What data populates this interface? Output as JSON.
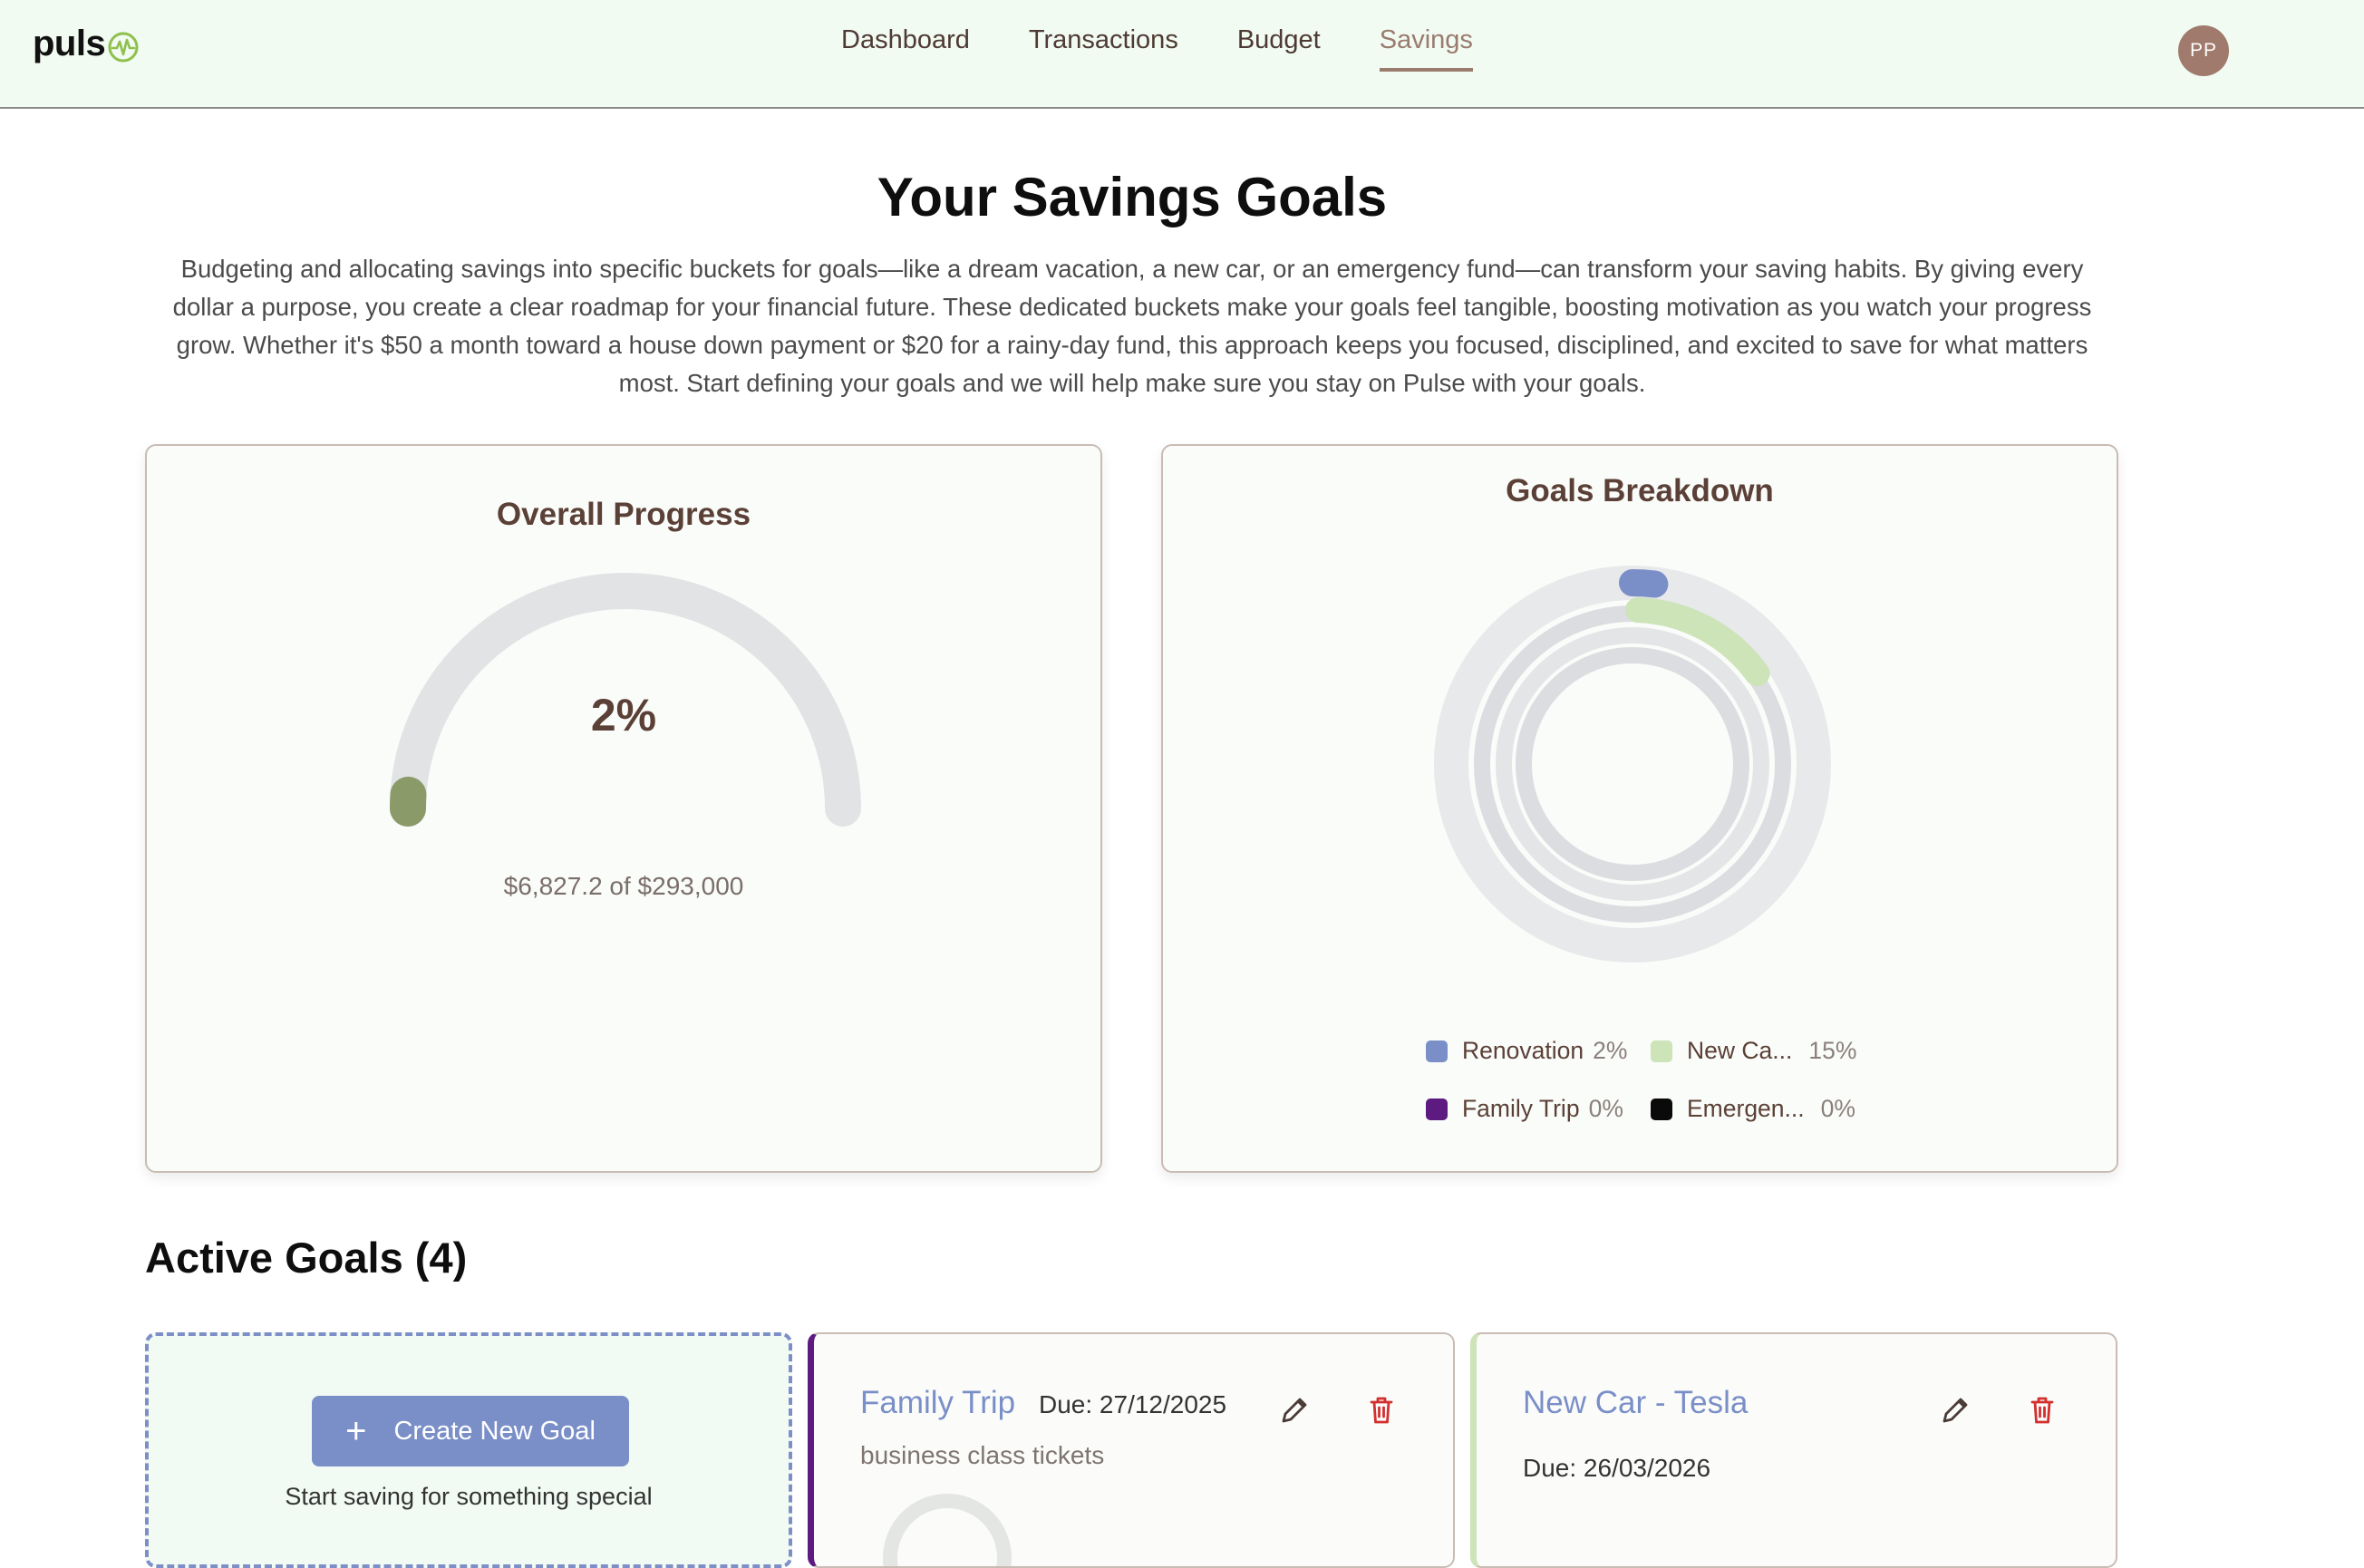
{
  "brand": {
    "name": "puls",
    "icon": "pulse-wave-icon"
  },
  "nav": {
    "items": [
      {
        "label": "Dashboard",
        "active": false
      },
      {
        "label": "Transactions",
        "active": false
      },
      {
        "label": "Budget",
        "active": false
      },
      {
        "label": "Savings",
        "active": true
      }
    ],
    "avatar_initials": "PP"
  },
  "header": {
    "title": "Your Savings Goals",
    "description": "Budgeting and allocating savings into specific buckets for goals—like a dream vacation, a new car, or an emergency fund—can transform your saving habits. By giving every dollar a purpose, you create a clear roadmap for your financial future. These dedicated buckets make your goals feel tangible, boosting motivation as you watch your progress grow. Whether it's $50 a month toward a house down payment or $20 for a rainy-day fund, this approach keeps you focused, disciplined, and excited to save for what matters most. Start defining your goals and we will help make sure you stay on Pulse with your goals."
  },
  "overall": {
    "title": "Overall Progress",
    "percent_label": "2%",
    "progress": 0.02,
    "amount_label": "$6,827.2 of $293,000",
    "color": "#8a9a68"
  },
  "breakdown": {
    "title": "Goals Breakdown",
    "legend": [
      {
        "label": "Renovation",
        "pct_label": "2%",
        "color": "#7a8fc8"
      },
      {
        "label": "New Ca...",
        "pct_label": "15%",
        "color": "#cde3b8"
      },
      {
        "label": "Family Trip",
        "pct_label": "0%",
        "color": "#5d1a80"
      },
      {
        "label": "Emergen...",
        "pct_label": "0%",
        "color": "#0a0a0a"
      }
    ]
  },
  "active_goals": {
    "title": "Active Goals (4)",
    "create_label": "Create New Goal",
    "create_subtext": "Start saving for something special",
    "goals": [
      {
        "name": "Family Trip",
        "due": "Due: 27/12/2025",
        "description": "business class tickets",
        "accent": "#5d1a80"
      },
      {
        "name": "New Car - Tesla",
        "due": "Due: 26/03/2026",
        "accent": "#cde3b8"
      }
    ]
  },
  "icons": {
    "edit": "pencil-icon",
    "delete": "trash-icon",
    "add": "plus-icon"
  },
  "colors": {
    "danger": "#d32f2f",
    "accent": "#7a8fc8",
    "brown": "#5b4037",
    "mint_bg": "#f1fbf2"
  }
}
